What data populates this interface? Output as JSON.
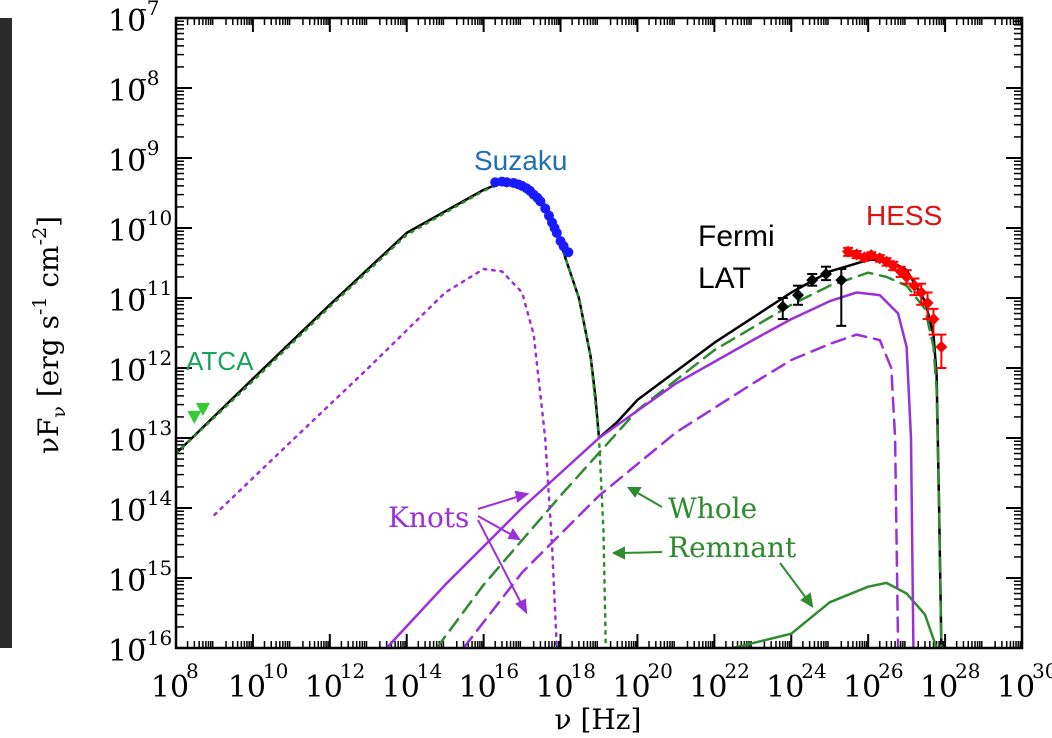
{
  "chart_data": {
    "type": "scatter",
    "xlabel": "ν [Hz]",
    "ylabel": "νF_ν [erg s^-1 cm^-2]",
    "x_scale": "log",
    "y_scale": "log",
    "xlim": [
      100000000.0,
      1e+30
    ],
    "ylim": [
      1e-16,
      1e-07
    ],
    "x_ticks": [
      {
        "exp": "8",
        "value": 100000000.0
      },
      {
        "exp": "10",
        "value": 10000000000.0
      },
      {
        "exp": "12",
        "value": 1000000000000.0
      },
      {
        "exp": "14",
        "value": 100000000000000.0
      },
      {
        "exp": "16",
        "value": 1e+16
      },
      {
        "exp": "18",
        "value": 1e+18
      },
      {
        "exp": "20",
        "value": 1e+20
      },
      {
        "exp": "22",
        "value": 1e+22
      },
      {
        "exp": "24",
        "value": 1e+24
      },
      {
        "exp": "26",
        "value": 1e+26
      },
      {
        "exp": "28",
        "value": 1e+28
      },
      {
        "exp": "30",
        "value": 1e+30
      }
    ],
    "y_ticks": [
      {
        "exp": "-7",
        "value": 1e-07
      },
      {
        "exp": "-8",
        "value": 1e-08
      },
      {
        "exp": "-9",
        "value": 1e-09
      },
      {
        "exp": "-10",
        "value": 1e-10
      },
      {
        "exp": "-11",
        "value": 1e-11
      },
      {
        "exp": "-12",
        "value": 1e-12
      },
      {
        "exp": "-13",
        "value": 1e-13
      },
      {
        "exp": "-14",
        "value": 1e-14
      },
      {
        "exp": "-15",
        "value": 1e-15
      },
      {
        "exp": "-16",
        "value": 1e-16
      }
    ],
    "data_labels": [
      {
        "text": "ATCA",
        "color": "#1aa35a"
      },
      {
        "text": "Suzaku",
        "color": "#1f6fb4"
      },
      {
        "text": "Fermi",
        "color": "#000000"
      },
      {
        "text": "LAT",
        "color": "#000000"
      },
      {
        "text": "HESS",
        "color": "#e01010"
      }
    ],
    "annotations": [
      "Knots",
      "Whole",
      "Remnant"
    ],
    "colors": {
      "total": "#000000",
      "whole": "#2e8b2e",
      "knots": "#9b30d9",
      "atca": "#33cc33",
      "suzaku": "#1a1aff",
      "fermi": "#000000",
      "hess": "#ff0000"
    },
    "series": [
      {
        "marker": "triangle",
        "color": "#33cc33",
        "points": [
          [
            300000000.0,
            2e-13
          ],
          [
            500000000.0,
            2.6e-13
          ]
        ]
      },
      {
        "marker": "circle",
        "color": "#1a1aff",
        "points": [
          [
            2e+16,
            4.5e-10
          ],
          [
            3e+16,
            4.6e-10
          ],
          [
            4e+16,
            4.5e-10
          ],
          [
            6e+16,
            4.4e-10
          ],
          [
            8e+16,
            4.2e-10
          ],
          [
            1e+17,
            4e-10
          ],
          [
            1.3e+17,
            3.7e-10
          ],
          [
            1.6e+17,
            3.4e-10
          ],
          [
            2e+17,
            3e-10
          ],
          [
            2.5e+17,
            2.7e-10
          ],
          [
            3e+17,
            2.4e-10
          ],
          [
            4e+17,
            1.9e-10
          ],
          [
            5e+17,
            1.5e-10
          ],
          [
            6e+17,
            1.2e-10
          ],
          [
            7e+17,
            1e-10
          ],
          [
            8e+17,
            8.5e-11
          ],
          [
            1e+18,
            6.5e-11
          ],
          [
            1.2e+18,
            5.5e-11
          ],
          [
            1.6e+18,
            4.5e-11
          ]
        ]
      },
      {
        "marker": "diamond",
        "color": "#000000",
        "points": [
          [
            6e+23,
            7.5e-12,
            5e-12,
            1e-11
          ],
          [
            1.5e+24,
            1.1e-11,
            8e-12,
            1.5e-11
          ],
          [
            3.5e+24,
            1.8e-11,
            1.5e-11,
            2.2e-11
          ],
          [
            8e+24,
            2.2e-11,
            1.8e-11,
            2.8e-11
          ],
          [
            2e+25,
            1.8e-11,
            4e-12,
            2.6e-11
          ]
        ]
      },
      {
        "marker": "diamond",
        "color": "#ff0000",
        "points": [
          [
            3e+25,
            4.6e-11,
            4e-11,
            5.2e-11
          ],
          [
            5e+25,
            4.2e-11,
            3.7e-11,
            4.7e-11
          ],
          [
            8e+25,
            3.8e-11,
            3.4e-11,
            4.2e-11
          ],
          [
            1.2e+26,
            4.1e-11,
            3.7e-11,
            4.5e-11
          ],
          [
            2e+26,
            3.7e-11,
            3.3e-11,
            4.1e-11
          ],
          [
            3e+26,
            3.3e-11,
            2.9e-11,
            3.7e-11
          ],
          [
            4.5e+26,
            2.9e-11,
            2.5e-11,
            3.3e-11
          ],
          [
            7e+26,
            2.4e-11,
            2e-11,
            2.8e-11
          ],
          [
            1e+27,
            2e-11,
            1.6e-11,
            2.5e-11
          ],
          [
            1.6e+27,
            1.5e-11,
            1.1e-11,
            1.9e-11
          ],
          [
            2.4e+27,
            1.2e-11,
            8e-12,
            1.6e-11
          ],
          [
            3.5e+27,
            8.5e-12,
            5e-12,
            1.2e-11
          ],
          [
            5e+27,
            5e-12,
            3e-12,
            7e-12
          ],
          [
            8e+27,
            2e-12,
            1e-12,
            3e-12
          ]
        ]
      },
      {
        "style": "solid",
        "color": "#000000",
        "points": [
          [
            100000000.0,
            6e-14
          ],
          [
            10000000000.0,
            7e-13
          ],
          [
            1000000000000.0,
            8e-12
          ],
          [
            100000000000000.0,
            8.5e-11
          ],
          [
            1e+16,
            3.5e-10
          ],
          [
            3e+16,
            4.5e-10
          ],
          [
            1e+17,
            4e-10
          ],
          [
            3e+17,
            2.4e-10
          ],
          [
            1e+18,
            6e-11
          ],
          [
            3e+18,
            1e-11
          ],
          [
            6e+18,
            1.5e-12
          ],
          [
            8e+18,
            4e-13
          ],
          [
            1e+19,
            1e-13
          ],
          [
            3e+19,
            1.7e-13
          ],
          [
            1e+20,
            3.5e-13
          ],
          [
            1e+22,
            2.3e-12
          ],
          [
            1e+24,
            1.2e-11
          ],
          [
            1e+25,
            2.4e-11
          ],
          [
            1e+26,
            3.5e-11
          ],
          [
            3e+26,
            3.6e-11
          ],
          [
            1e+27,
            2.5e-11
          ],
          [
            3e+27,
            9e-12
          ],
          [
            5e+27,
            3e-12
          ],
          [
            6e+27,
            8e-13
          ],
          [
            7e+27,
            1e-14
          ],
          [
            8e+27,
            1e-16
          ]
        ]
      },
      {
        "style": "dotted",
        "color": "#2e8b2e",
        "points": [
          [
            100000000.0,
            6e-14
          ],
          [
            10000000000.0,
            6.5e-13
          ],
          [
            1000000000000.0,
            7.5e-12
          ],
          [
            100000000000000.0,
            8e-11
          ],
          [
            1e+16,
            3.4e-10
          ],
          [
            3e+16,
            4.4e-10
          ],
          [
            1e+17,
            3.9e-10
          ],
          [
            3e+17,
            2.4e-10
          ],
          [
            1e+18,
            6e-11
          ],
          [
            3e+18,
            1e-11
          ],
          [
            6e+18,
            1.5e-12
          ],
          [
            1e+19,
            1e-13
          ],
          [
            1.3e+19,
            5e-15
          ],
          [
            1.5e+19,
            1e-16
          ]
        ]
      },
      {
        "style": "dashed",
        "color": "#2e8b2e",
        "points": [
          [
            600000000000000.0,
            1e-16
          ],
          [
            1e+16,
            8e-16
          ],
          [
            1e+18,
            1.5e-14
          ],
          [
            1e+20,
            2.5e-13
          ],
          [
            1e+22,
            1.8e-12
          ],
          [
            1e+24,
            8e-12
          ],
          [
            1e+25,
            1.5e-11
          ],
          [
            1e+26,
            2.3e-11
          ],
          [
            3e+26,
            2e-11
          ],
          [
            1e+27,
            1.5e-11
          ],
          [
            3e+27,
            7e-12
          ],
          [
            5e+27,
            2e-12
          ],
          [
            6e+27,
            5e-13
          ],
          [
            7e+27,
            1e-14
          ],
          [
            8e+27,
            1e-16
          ]
        ]
      },
      {
        "style": "solid",
        "color": "#2e8b2e",
        "points": [
          [
            3e+22,
            1e-16
          ],
          [
            1e+24,
            1.6e-16
          ],
          [
            1e+25,
            4.5e-16
          ],
          [
            1e+26,
            7.5e-16
          ],
          [
            3e+26,
            8.5e-16
          ],
          [
            1e+27,
            6e-16
          ],
          [
            3e+27,
            3e-16
          ],
          [
            6e+27,
            1e-16
          ]
        ]
      },
      {
        "style": "dotted",
        "color": "#9b30d9",
        "points": [
          [
            1000000000.0,
            8e-15
          ],
          [
            100000000000.0,
            9e-14
          ],
          [
            10000000000000.0,
            1e-12
          ],
          [
            1000000000000000.0,
            1.2e-11
          ],
          [
            1e+16,
            2.6e-11
          ],
          [
            3e+16,
            2.4e-11
          ],
          [
            1e+17,
            1.2e-11
          ],
          [
            2e+17,
            3e-12
          ],
          [
            4e+17,
            1e-13
          ],
          [
            6e+17,
            3e-15
          ],
          [
            8e+17,
            1e-16
          ]
        ]
      },
      {
        "style": "solid",
        "color": "#9b30d9",
        "points": [
          [
            30000000000000.0,
            1e-16
          ],
          [
            1000000000000000.0,
            8e-16
          ],
          [
            1e+17,
            1e-14
          ],
          [
            1e+19,
            1e-13
          ],
          [
            1e+21,
            6e-13
          ],
          [
            1e+23,
            2.5e-12
          ],
          [
            1e+24,
            5e-12
          ],
          [
            1e+25,
            9e-12
          ],
          [
            5e+25,
            1.2e-11
          ],
          [
            2e+26,
            1.1e-11
          ],
          [
            6e+26,
            6e-12
          ],
          [
            1e+27,
            2e-12
          ],
          [
            1.3e+27,
            1e-13
          ],
          [
            1.5e+27,
            1e-16
          ]
        ]
      },
      {
        "style": "dashed",
        "color": "#9b30d9",
        "points": [
          [
            3000000000000000.0,
            1e-16
          ],
          [
            1e+17,
            1.2e-15
          ],
          [
            1e+19,
            1.5e-14
          ],
          [
            1e+21,
            1.2e-13
          ],
          [
            1e+23,
            6e-13
          ],
          [
            1e+24,
            1.3e-12
          ],
          [
            1e+25,
            2.2e-12
          ],
          [
            5e+25,
            3e-12
          ],
          [
            2e+26,
            2.5e-12
          ],
          [
            4e+26,
            1e-12
          ],
          [
            5e+26,
            1e-13
          ],
          [
            6e+26,
            1e-16
          ]
        ]
      }
    ]
  }
}
